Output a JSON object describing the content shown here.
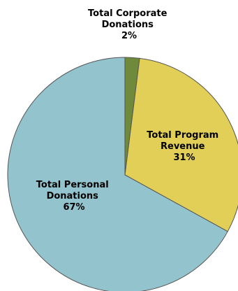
{
  "chart_data": {
    "type": "pie",
    "title": "",
    "categories": [
      "Total Corporate Donations",
      "Total Program Revenue",
      "Total Personal Donations"
    ],
    "values": [
      2,
      31,
      67
    ],
    "label_lines": [
      [
        "Total Corporate",
        "Donations",
        "2%"
      ],
      [
        "Total Program",
        "Revenue",
        "31%"
      ],
      [
        "Total Personal",
        "Donations",
        "67%"
      ]
    ],
    "colors": [
      "#6e8a3a",
      "#e2cf57",
      "#93c3cc"
    ],
    "start_angle_deg": 0,
    "direction": "clockwise",
    "legend": "none"
  }
}
